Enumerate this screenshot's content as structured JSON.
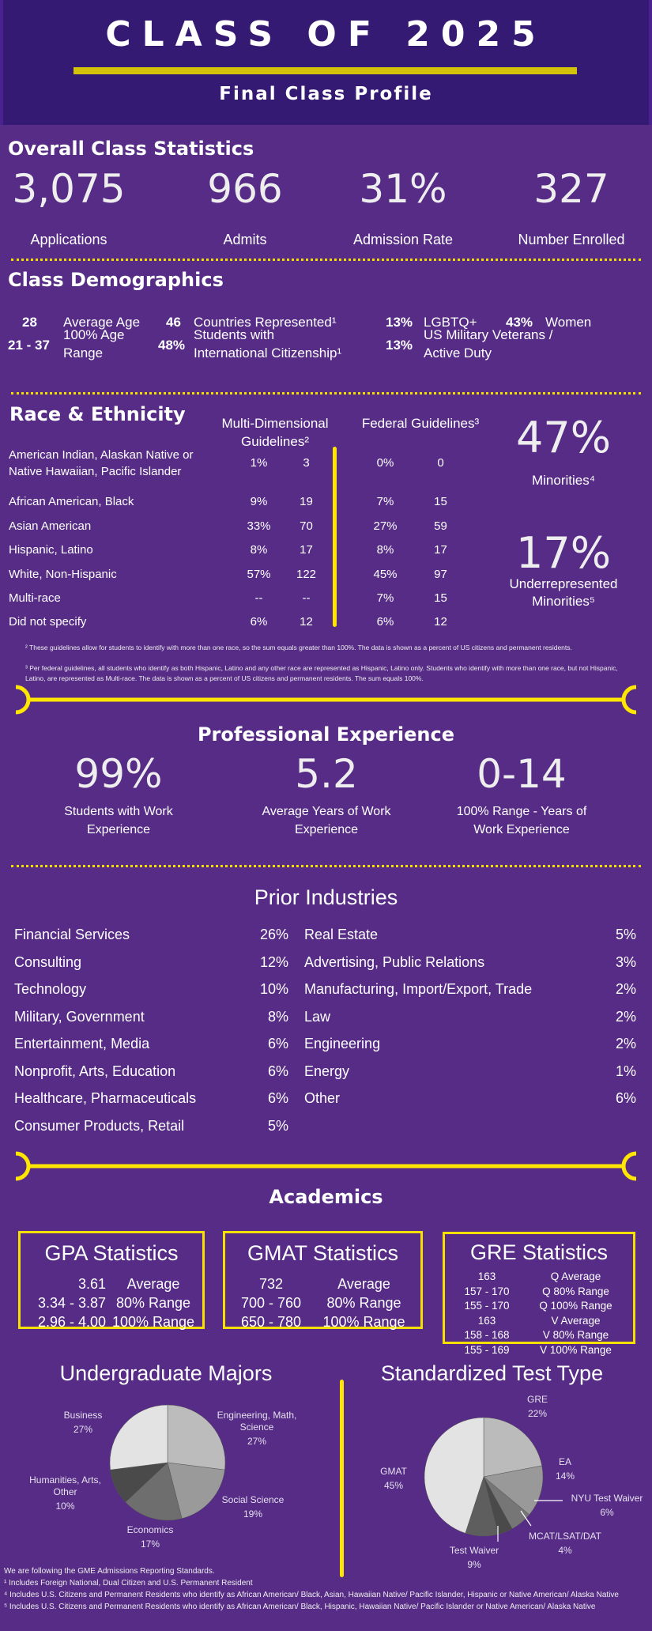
{
  "header": {
    "title": "CLASS OF 2025",
    "subtitle": "Final Class Profile"
  },
  "colors": {
    "background": "#562c86",
    "header": "#351a74",
    "accent": "#f5e000"
  },
  "overall": {
    "heading": "Overall Class Statistics",
    "stats": [
      {
        "value": "3,075",
        "label": "Applications"
      },
      {
        "value": "966",
        "label": "Admits"
      },
      {
        "value": "31%",
        "label": "Admission Rate"
      },
      {
        "value": "327",
        "label": "Number Enrolled"
      }
    ]
  },
  "demographics": {
    "heading": "Class Demographics",
    "items": [
      {
        "value": "28",
        "label": "Average Age"
      },
      {
        "value": "46",
        "label": "Countries Represented¹"
      },
      {
        "value": "13%",
        "label": "LGBTQ+"
      },
      {
        "value": "43%",
        "label": "Women"
      },
      {
        "value": "21 - 37",
        "label": "100% Age Range"
      },
      {
        "value": "48%",
        "label": "Students with International Citizenship¹"
      },
      {
        "value": "13%",
        "label": "US Military Veterans / Active Duty"
      }
    ]
  },
  "race": {
    "heading": "Race & Ethnicity",
    "col1": "Multi-Dimensional Guidelines²",
    "col2": "Federal Guidelines³",
    "rows": [
      {
        "label": "American Indian, Alaskan Native or Native Hawaiian, Pacific Islander",
        "md_pct": "1%",
        "md_n": "3",
        "fed_pct": "0%",
        "fed_n": "0"
      },
      {
        "label": "African American, Black",
        "md_pct": "9%",
        "md_n": "19",
        "fed_pct": "7%",
        "fed_n": "15"
      },
      {
        "label": "Asian American",
        "md_pct": "33%",
        "md_n": "70",
        "fed_pct": "27%",
        "fed_n": "59"
      },
      {
        "label": "Hispanic, Latino",
        "md_pct": "8%",
        "md_n": "17",
        "fed_pct": "8%",
        "fed_n": "17"
      },
      {
        "label": "White, Non-Hispanic",
        "md_pct": "57%",
        "md_n": "122",
        "fed_pct": "45%",
        "fed_n": "97"
      },
      {
        "label": "Multi-race",
        "md_pct": "--",
        "md_n": "--",
        "fed_pct": "7%",
        "fed_n": "15"
      },
      {
        "label": "Did not specify",
        "md_pct": "6%",
        "md_n": "12",
        "fed_pct": "6%",
        "fed_n": "12"
      }
    ],
    "minorities": {
      "value": "47%",
      "label": "Minorities⁴"
    },
    "urm": {
      "value": "17%",
      "label": "Underrepresented Minorities⁵"
    },
    "footnotes": [
      "² These guidelines allow for students to identify with more than one race, so the sum equals greater than 100%. The data is shown as a percent of US citizens and permanent residents.",
      "³ Per federal guidelines, all students who identify as both Hispanic, Latino and any other race are represented as Hispanic, Latino only. Students who identify with more than one race, but not Hispanic, Latino, are represented as Multi-race. The data is shown as a percent of US citizens and permanent residents. The sum equals 100%."
    ]
  },
  "experience": {
    "heading": "Professional Experience",
    "stats": [
      {
        "value": "99%",
        "label": "Students with Work Experience"
      },
      {
        "value": "5.2",
        "label": "Average Years of Work Experience"
      },
      {
        "value": "0-14",
        "label": "100% Range - Years of Work Experience"
      }
    ]
  },
  "industries": {
    "heading": "Prior Industries",
    "left": [
      {
        "name": "Financial Services",
        "pct": "26%"
      },
      {
        "name": "Consulting",
        "pct": "12%"
      },
      {
        "name": "Technology",
        "pct": "10%"
      },
      {
        "name": "Military, Government",
        "pct": "8%"
      },
      {
        "name": "Entertainment, Media",
        "pct": "6%"
      },
      {
        "name": "Nonprofit, Arts, Education",
        "pct": "6%"
      },
      {
        "name": "Healthcare, Pharmaceuticals",
        "pct": "6%"
      },
      {
        "name": "Consumer Products, Retail",
        "pct": "5%"
      }
    ],
    "right": [
      {
        "name": "Real Estate",
        "pct": "5%"
      },
      {
        "name": "Advertising, Public Relations",
        "pct": "3%"
      },
      {
        "name": "Manufacturing, Import/Export, Trade",
        "pct": "2%"
      },
      {
        "name": "Law",
        "pct": "2%"
      },
      {
        "name": "Engineering",
        "pct": "2%"
      },
      {
        "name": "Energy",
        "pct": "1%"
      },
      {
        "name": "Other",
        "pct": "6%"
      }
    ]
  },
  "academics": {
    "heading": "Academics",
    "gpa": {
      "title": "GPA Statistics",
      "rows": [
        {
          "v": "3.61",
          "l": "Average"
        },
        {
          "v": "3.34 - 3.87",
          "l": "80% Range"
        },
        {
          "v": "2.96 - 4.00",
          "l": "100% Range"
        }
      ]
    },
    "gmat": {
      "title": "GMAT Statistics",
      "rows": [
        {
          "v": "732",
          "l": "Average"
        },
        {
          "v": "700 - 760",
          "l": "80% Range"
        },
        {
          "v": "650 - 780",
          "l": "100% Range"
        }
      ]
    },
    "gre": {
      "title": "GRE Statistics",
      "rows": [
        {
          "v": "163",
          "l": "Q Average"
        },
        {
          "v": "157 - 170",
          "l": "Q 80% Range"
        },
        {
          "v": "155 - 170",
          "l": "Q 100% Range"
        },
        {
          "v": "163",
          "l": "V Average"
        },
        {
          "v": "158 - 168",
          "l": "V 80% Range"
        },
        {
          "v": "155 - 169",
          "l": "V 100% Range"
        }
      ]
    }
  },
  "chart_data": [
    {
      "type": "pie",
      "title": "Undergraduate Majors",
      "labels": [
        "Engineering, Math, Science",
        "Social Science",
        "Economics",
        "Humanities, Arts, Other",
        "Business"
      ],
      "values": [
        27,
        19,
        17,
        10,
        27
      ],
      "colors": [
        "#bcbcbc",
        "#9a9a9a",
        "#6e6e6e",
        "#4a4a4a",
        "#e3e3e3"
      ]
    },
    {
      "type": "pie",
      "title": "Standardized Test Type",
      "labels": [
        "GRE",
        "EA",
        "NYU Test Waiver",
        "MCAT/LSAT/DAT",
        "Test Waiver",
        "GMAT"
      ],
      "values": [
        22,
        14,
        6,
        4,
        9,
        45
      ],
      "colors": [
        "#bbbbbb",
        "#999999",
        "#767676",
        "#4a4a4a",
        "#5e5e5e",
        "#e3e3e3"
      ]
    }
  ],
  "footer": [
    "We are following the GME Admissions Reporting Standards.",
    "¹ Includes Foreign National, Dual Citizen and U.S. Permanent Resident",
    "⁴ Includes U.S. Citizens and Permanent Residents who identify as African American/ Black, Asian, Hawaiian Native/ Pacific Islander, Hispanic or Native American/ Alaska Native",
    "⁵ Includes U.S. Citizens and Permanent Residents who identify as African American/ Black, Hispanic, Hawaiian Native/ Pacific Islander or Native American/ Alaska Native"
  ]
}
